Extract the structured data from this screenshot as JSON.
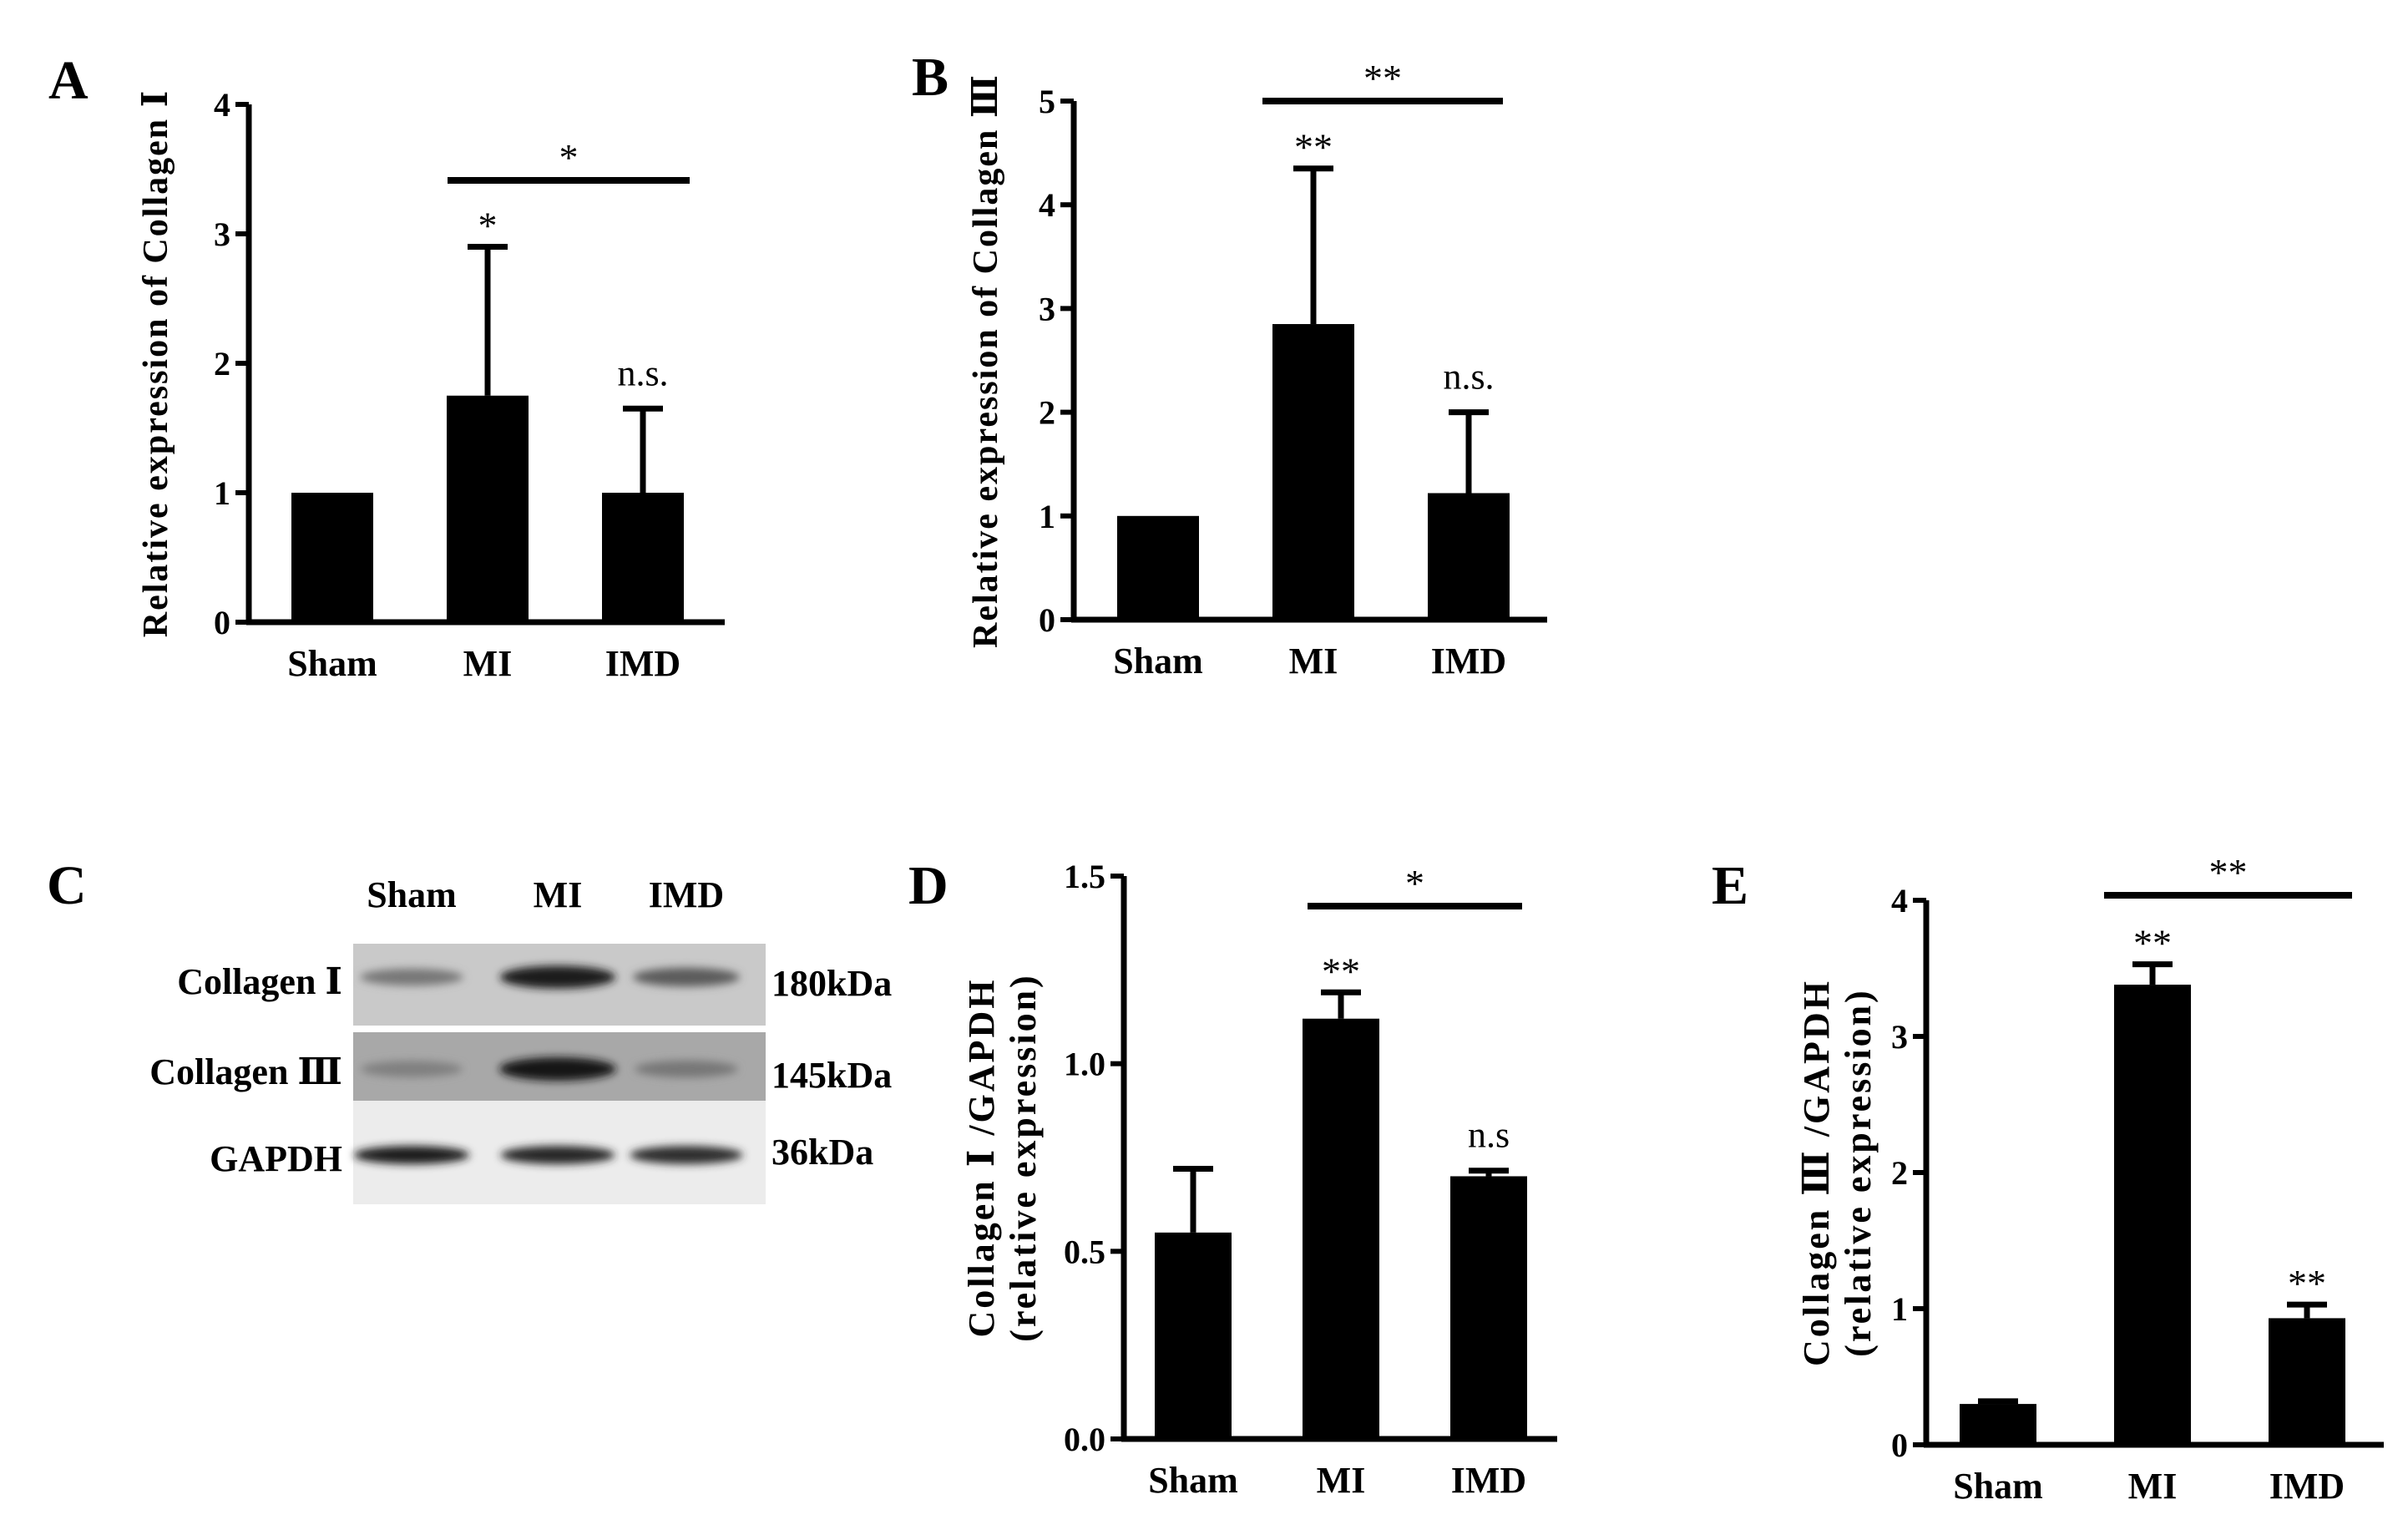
{
  "panels": {
    "A": {
      "letter": "A"
    },
    "B": {
      "letter": "B"
    },
    "C": {
      "letter": "C"
    },
    "D": {
      "letter": "D"
    },
    "E": {
      "letter": "E"
    }
  },
  "blot": {
    "columns": [
      "Sham",
      "MI",
      "IMD"
    ],
    "rows": [
      {
        "label": "Collagen Ⅰ",
        "size": "180kDa",
        "bands": [
          0.45,
          0.95,
          0.6
        ]
      },
      {
        "label": "Collagen Ⅲ",
        "size": "145kDa",
        "bands": [
          0.4,
          1.0,
          0.45
        ]
      },
      {
        "label": "GAPDH",
        "size": "36kDa",
        "bands": [
          0.95,
          0.9,
          0.85
        ]
      }
    ]
  },
  "chart_data": [
    {
      "panel": "A",
      "type": "bar",
      "categories": [
        "Sham",
        "MI",
        "IMD"
      ],
      "values": [
        1.0,
        1.75,
        1.0
      ],
      "error": [
        0,
        1.15,
        0.65
      ],
      "ylabel": "Relative expression of Collagen Ⅰ",
      "ylim": [
        0,
        4
      ],
      "yticks": [
        "0",
        "1",
        "2",
        "3",
        "4"
      ],
      "bar_labels": [
        "",
        "*",
        "n.s."
      ],
      "comparison": {
        "from": "MI",
        "to": "IMD",
        "label": "*"
      }
    },
    {
      "panel": "B",
      "type": "bar",
      "categories": [
        "Sham",
        "MI",
        "IMD"
      ],
      "values": [
        1.0,
        2.85,
        1.22
      ],
      "error": [
        0,
        1.5,
        0.78
      ],
      "ylabel": "Relative expression of Collagen Ⅲ",
      "ylim": [
        0,
        5
      ],
      "yticks": [
        "0",
        "1",
        "2",
        "3",
        "4",
        "5"
      ],
      "bar_labels": [
        "",
        "**",
        "n.s."
      ],
      "comparison": {
        "from": "MI",
        "to": "IMD",
        "label": "**"
      }
    },
    {
      "panel": "D",
      "type": "bar",
      "categories": [
        "Sham",
        "MI",
        "IMD"
      ],
      "values": [
        0.55,
        1.12,
        0.7
      ],
      "error": [
        0.17,
        0.07,
        0.015
      ],
      "ylabel": "Collagen Ⅰ /GAPDH",
      "ylabel2": "(relative expression)",
      "ylim": [
        0,
        1.5
      ],
      "yticks": [
        "0.0",
        "0.5",
        "1.0",
        "1.5"
      ],
      "bar_labels": [
        "",
        "**",
        "n.s"
      ],
      "comparison": {
        "from": "MI",
        "to": "IMD",
        "label": "*"
      }
    },
    {
      "panel": "E",
      "type": "bar",
      "categories": [
        "Sham",
        "MI",
        "IMD"
      ],
      "values": [
        0.3,
        3.38,
        0.93
      ],
      "error": [
        0.02,
        0.15,
        0.1
      ],
      "ylabel": "Collagen Ⅲ /GAPDH",
      "ylabel2": "(relative expression)",
      "ylim": [
        0,
        4
      ],
      "yticks": [
        "0",
        "1",
        "2",
        "3",
        "4"
      ],
      "bar_labels": [
        "",
        "**",
        "**"
      ],
      "comparison": {
        "from": "MI",
        "to": "IMD",
        "label": "**"
      }
    }
  ]
}
